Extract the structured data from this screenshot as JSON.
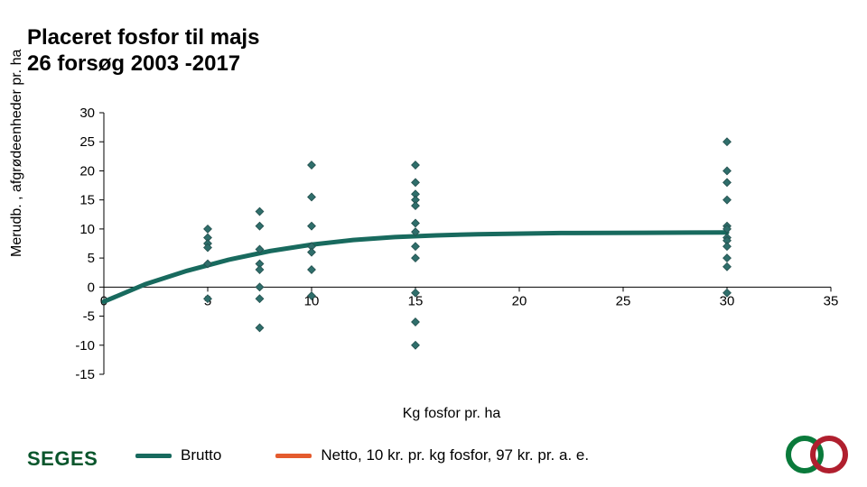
{
  "title_line1": "Placeret fosfor til majs",
  "title_line2": "26 forsøg 2003 -2017",
  "ylabel": "Merudb. , afgrødeenheder pr. ha",
  "xlabel": "Kg fosfor pr. ha",
  "chart": {
    "type": "scatter",
    "background_color": "#ffffff",
    "axis_color": "#000000",
    "grid": false,
    "xlim": [
      0,
      35
    ],
    "ylim": [
      -15,
      30
    ],
    "xtick_step": 5,
    "ytick_step": 5,
    "xticks": [
      0,
      5,
      10,
      15,
      20,
      25,
      30,
      35
    ],
    "yticks": [
      -15,
      -10,
      -5,
      0,
      5,
      10,
      15,
      20,
      25,
      30
    ],
    "tick_fontsize": 15,
    "marker": {
      "shape": "diamond",
      "size": 7,
      "fill": "#2f6e6b",
      "stroke": "#234f4d"
    },
    "points": [
      [
        5,
        10
      ],
      [
        5,
        8.5
      ],
      [
        5,
        7.5
      ],
      [
        5,
        6.8
      ],
      [
        5,
        4
      ],
      [
        5,
        -2
      ],
      [
        7.5,
        13
      ],
      [
        7.5,
        10.5
      ],
      [
        7.5,
        6.5
      ],
      [
        7.5,
        4
      ],
      [
        7.5,
        3
      ],
      [
        7.5,
        0
      ],
      [
        7.5,
        -2
      ],
      [
        7.5,
        -7
      ],
      [
        10,
        21
      ],
      [
        10,
        15.5
      ],
      [
        10,
        10.5
      ],
      [
        10,
        7
      ],
      [
        10,
        6
      ],
      [
        10,
        3
      ],
      [
        10,
        -1.5
      ],
      [
        15,
        21
      ],
      [
        15,
        18
      ],
      [
        15,
        16
      ],
      [
        15,
        15
      ],
      [
        15,
        14
      ],
      [
        15,
        11
      ],
      [
        15,
        9.5
      ],
      [
        15,
        7
      ],
      [
        15,
        5
      ],
      [
        15,
        -1
      ],
      [
        15,
        -6
      ],
      [
        15,
        -10
      ],
      [
        30,
        25
      ],
      [
        30,
        20
      ],
      [
        30,
        18
      ],
      [
        30,
        15
      ],
      [
        30,
        10.5
      ],
      [
        30,
        10
      ],
      [
        30,
        8.5
      ],
      [
        30,
        8
      ],
      [
        30,
        7
      ],
      [
        30,
        5
      ],
      [
        30,
        3.5
      ],
      [
        30,
        -1
      ]
    ],
    "trend": {
      "color": "#186a5e",
      "width": 5,
      "pts": [
        [
          0,
          -2.5
        ],
        [
          2,
          0.5
        ],
        [
          4,
          2.8
        ],
        [
          6,
          4.7
        ],
        [
          8,
          6.2
        ],
        [
          10,
          7.3
        ],
        [
          12,
          8.1
        ],
        [
          14,
          8.6
        ],
        [
          16,
          8.9
        ],
        [
          18,
          9.1
        ],
        [
          22,
          9.3
        ],
        [
          26,
          9.35
        ],
        [
          30,
          9.4
        ]
      ]
    }
  },
  "legend": {
    "items": [
      {
        "label": "Brutto",
        "color": "#186a5e"
      },
      {
        "label": "Netto, 10 kr. pr. kg fosfor, 97 kr. pr. a. e.",
        "color": "#e45b2e"
      }
    ],
    "fontsize": 17,
    "line_width": 5
  },
  "footer": {
    "left_text": "SEGES",
    "left_color": "#09562c",
    "right_logo_colors": {
      "c1": "#0a7a3b",
      "c2": "#b01f2e"
    }
  }
}
